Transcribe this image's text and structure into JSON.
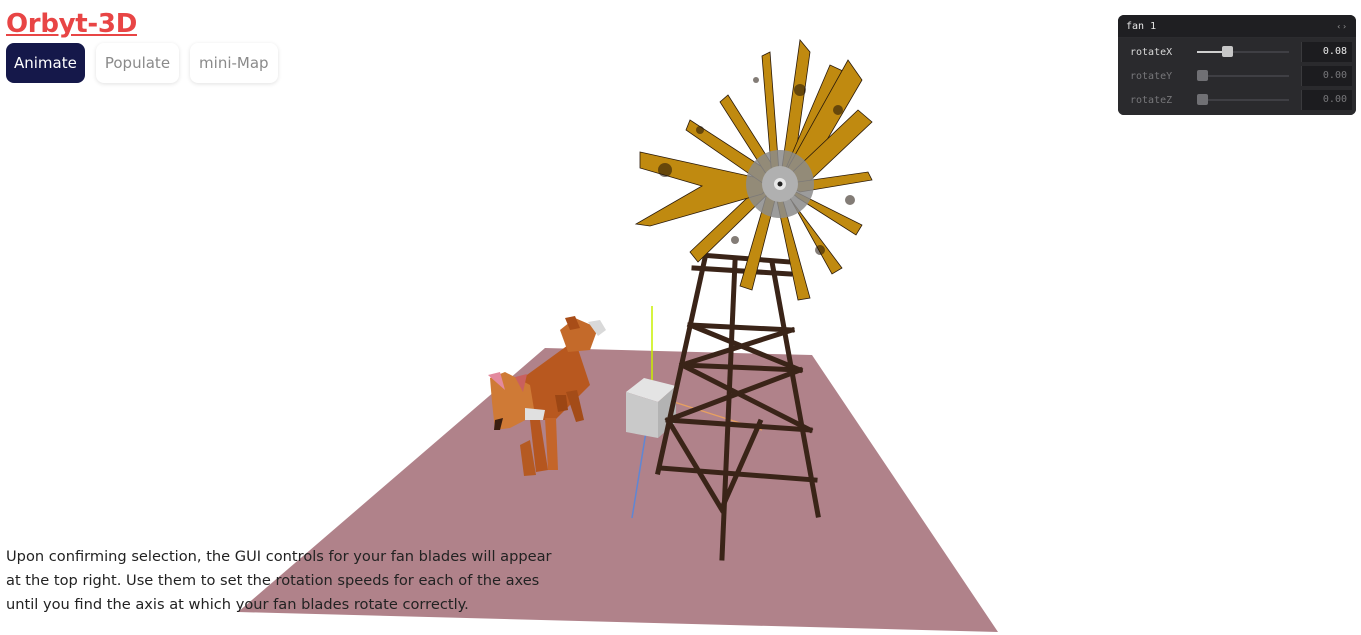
{
  "app": {
    "title": "Orbyt-3D"
  },
  "toolbar": {
    "buttons": [
      {
        "label": "Animate"
      },
      {
        "label": "Populate"
      },
      {
        "label": "mini-Map"
      }
    ]
  },
  "gui": {
    "title": "fan 1",
    "controls": [
      {
        "label": "rotateX",
        "value": "0.08",
        "slider_fraction": 0.27
      },
      {
        "label": "rotateY",
        "value": "0.00",
        "slider_fraction": 0.0
      },
      {
        "label": "rotateZ",
        "value": "0.00",
        "slider_fraction": 0.0
      }
    ]
  },
  "caption": {
    "text": "Upon confirming selection, the GUI controls for your fan blades will appear at the top right. Use them to set the rotation speeds for each of the axes until you find the axis at which your fan blades rotate correctly."
  },
  "colors": {
    "brand": "#e84545",
    "primary_button": "#15184a",
    "ground": "#b0828a",
    "blade": "#c08a10",
    "tower": "#3a2418",
    "fox": "#c0622a"
  },
  "icons": {
    "collapse": "collapse-icon"
  }
}
